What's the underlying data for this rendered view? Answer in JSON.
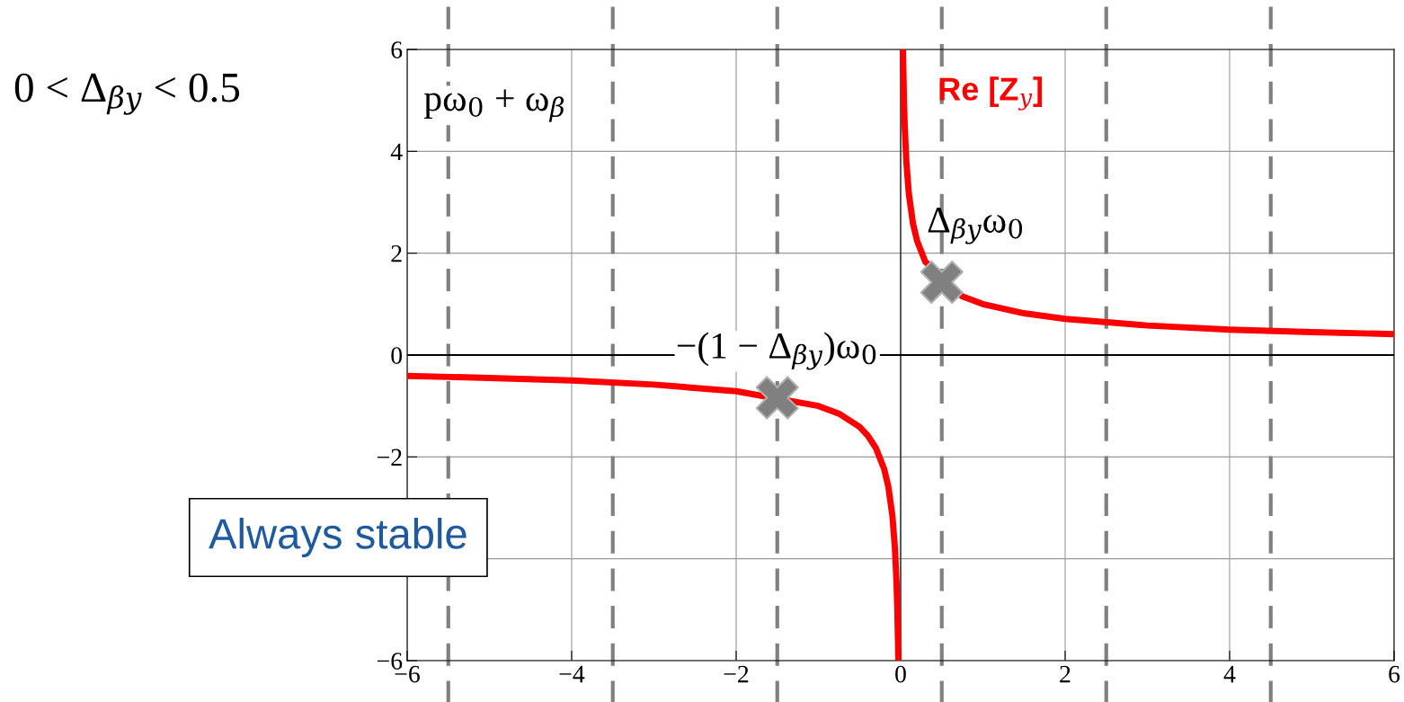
{
  "chart_data": {
    "type": "line",
    "title": "0 < Δ$_{βy}$ < 0.5",
    "series": [
      {
        "name": "Re [Z$_{y}$]",
        "color": "#ff0000",
        "x": [
          -6,
          -5,
          -4,
          -3,
          -2,
          -1,
          -0.75,
          -0.5,
          -0.4,
          -0.3,
          -0.2,
          -0.15,
          -0.1,
          -0.07,
          -0.05,
          -0.04,
          -0.028,
          0,
          0.028,
          0.04,
          0.05,
          0.07,
          0.1,
          0.15,
          0.2,
          0.3,
          0.75,
          1,
          1.5,
          2,
          3,
          4,
          5,
          6
        ],
        "values": [
          -0.41,
          -0.45,
          -0.5,
          -0.58,
          -0.71,
          -1.0,
          -1.15,
          -1.41,
          -1.58,
          -1.83,
          -2.24,
          -2.58,
          -3.16,
          -3.78,
          -4.47,
          -5.0,
          -6,
          null,
          6,
          5.0,
          4.47,
          3.78,
          3.16,
          2.58,
          2.24,
          1.83,
          1.15,
          1.0,
          0.82,
          0.71,
          0.58,
          0.5,
          0.45,
          0.41
        ]
      },
      {
        "type": "scatter",
        "marker": "cross",
        "color": "#808080",
        "x": [
          -1.5,
          0.5
        ],
        "values": [
          -0.84,
          1.43
        ]
      }
    ],
    "xlim": [
      -6,
      6
    ],
    "ylim": [
      -6,
      6
    ],
    "xticks": [
      -6,
      -4,
      -2,
      0,
      2,
      4,
      6
    ],
    "yticks": [
      -6,
      {
        "value": -4,
        "label": null
      },
      -2,
      0,
      2,
      4,
      6
    ],
    "grid": true,
    "ref_lines": [
      {
        "axis": "x",
        "value": -5.5,
        "color": "#808080",
        "line_style": "dashed"
      },
      {
        "axis": "x",
        "value": -3.5,
        "color": "#808080",
        "line_style": "dashed"
      },
      {
        "axis": "x",
        "value": -1.5,
        "color": "#808080",
        "line_style": "dashed"
      },
      {
        "axis": "x",
        "value": 0.5,
        "color": "#808080",
        "line_style": "dashed"
      },
      {
        "axis": "x",
        "value": 2.5,
        "color": "#808080",
        "line_style": "dashed"
      },
      {
        "axis": "x",
        "value": 4.5,
        "color": "#808080",
        "line_style": "dashed"
      },
      {
        "axis": "x",
        "value": 0,
        "color": "#000000",
        "line_style": "solid"
      },
      {
        "axis": "y",
        "value": 0,
        "color": "#000000",
        "line_style": "solid"
      }
    ],
    "annotations": [
      "pω$_{0}$ + ω$_{β}$",
      {
        "text": "Δ$_{βy}$ω$_{0}$",
        "x": 0.5,
        "y": 1.43
      },
      {
        "text": "−(1 − Δ$_{βy}$)ω$_{0}$",
        "x": -1.5,
        "y": -0.84
      },
      "Always stable"
    ]
  }
}
